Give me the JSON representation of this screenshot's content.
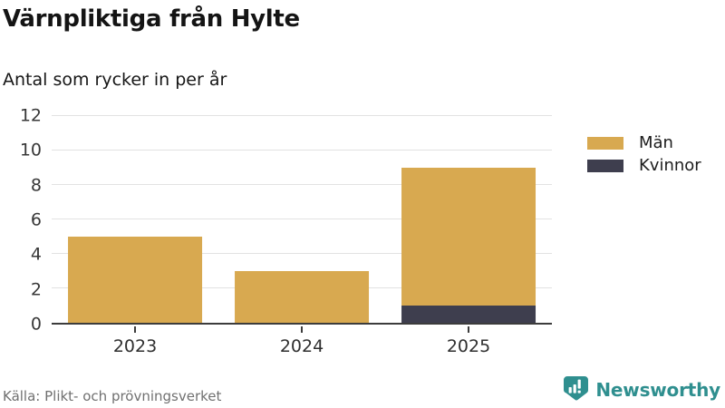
{
  "header": {
    "title": "Värnpliktiga från Hylte",
    "subtitle": "Antal som rycker in per år"
  },
  "footer": {
    "source": "Källa: Plikt- och prövningsverket",
    "brand": "Newsworthy"
  },
  "colors": {
    "man": "#d8a950",
    "kvinnor": "#3e3e4e",
    "gridline": "#e2e2e2",
    "axis_line": "#3c3c3c",
    "axis_text": "#383838",
    "source_text": "#707070",
    "brand_teal": "#2f8f8f"
  },
  "chart_data": {
    "type": "bar",
    "stacked": true,
    "title": "Värnpliktiga från Hylte",
    "subtitle": "Antal som rycker in per år",
    "categories": [
      "2023",
      "2024",
      "2025"
    ],
    "series": [
      {
        "name": "Män",
        "color": "#d8a950",
        "values": [
          5,
          3,
          8
        ]
      },
      {
        "name": "Kvinnor",
        "color": "#3e3e4e",
        "values": [
          0,
          0,
          1
        ]
      }
    ],
    "stack_totals": [
      5,
      3,
      9
    ],
    "xlabel": "",
    "ylabel": "",
    "ylim": [
      0,
      12
    ],
    "yticks": [
      0,
      2,
      4,
      6,
      8,
      10,
      12
    ],
    "grid": true,
    "legend_position": "right"
  }
}
